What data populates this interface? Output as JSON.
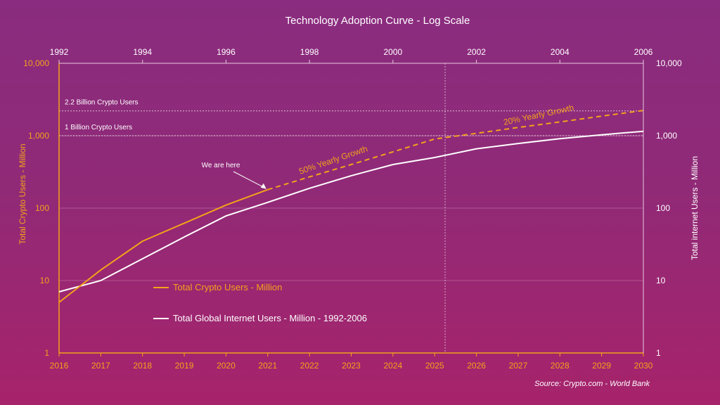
{
  "chart_data": {
    "type": "line",
    "title": "Technology Adoption Curve - Log Scale",
    "y_scale": "log",
    "ylim": [
      1,
      10000
    ],
    "y_ticks": [
      "1",
      "10",
      "100",
      "1,000",
      "10,000"
    ],
    "left_ylabel": "Total Crypto Users - Million",
    "right_ylabel": "Total internet Users - Million",
    "bottom_xaxis": {
      "range": [
        2016,
        2030
      ],
      "ticks": [
        "2016",
        "2017",
        "2018",
        "2019",
        "2020",
        "2021",
        "2022",
        "2023",
        "2024",
        "2025",
        "2026",
        "2027",
        "2028",
        "2029",
        "2030"
      ]
    },
    "top_xaxis": {
      "range": [
        1992,
        2006
      ],
      "ticks": [
        "1992",
        "1994",
        "1996",
        "1998",
        "2000",
        "2002",
        "2004",
        "2006"
      ]
    },
    "series": [
      {
        "name": "Total Crypto Users - Million",
        "axis": "bottom",
        "color": "#f3a21b",
        "actual": {
          "x": [
            2016,
            2017,
            2018,
            2019,
            2020,
            2021
          ],
          "y": [
            5,
            14,
            35,
            62,
            110,
            180
          ]
        },
        "projected": {
          "x": [
            2021,
            2022,
            2023,
            2024,
            2025,
            2026,
            2027,
            2028,
            2029,
            2030
          ],
          "y": [
            180,
            270,
            400,
            600,
            900,
            1080,
            1300,
            1550,
            1860,
            2230
          ]
        }
      },
      {
        "name": "Total Global Internet Users - Million - 1992-2006",
        "axis": "top",
        "color": "#ffffff",
        "x": [
          1992,
          1993,
          1994,
          1995,
          1996,
          1997,
          1998,
          1999,
          2000,
          2001,
          2002,
          2003,
          2004,
          2005,
          2006
        ],
        "y": [
          7,
          10,
          20,
          40,
          78,
          120,
          188,
          280,
          400,
          500,
          660,
          780,
          910,
          1030,
          1150
        ]
      }
    ],
    "reference_lines": [
      {
        "label": "2.2 Billion Crypto Users",
        "y": 2200
      },
      {
        "label": "1 Billion Crypto Users",
        "y": 1000
      }
    ],
    "vertical_marker": {
      "x": 2025.25
    },
    "annotations": [
      {
        "text": "We are here",
        "x": 2021,
        "y": 180
      },
      {
        "text": "50% Yearly Growth"
      },
      {
        "text": "20% Yearly Growth"
      }
    ],
    "legend": {
      "position": "lower-left",
      "items": [
        "Total Crypto Users - Million",
        "Total Global Internet Users - Million - 1992-2006"
      ]
    },
    "source": "Source: Crypto.com  - World Bank",
    "grid": true
  }
}
